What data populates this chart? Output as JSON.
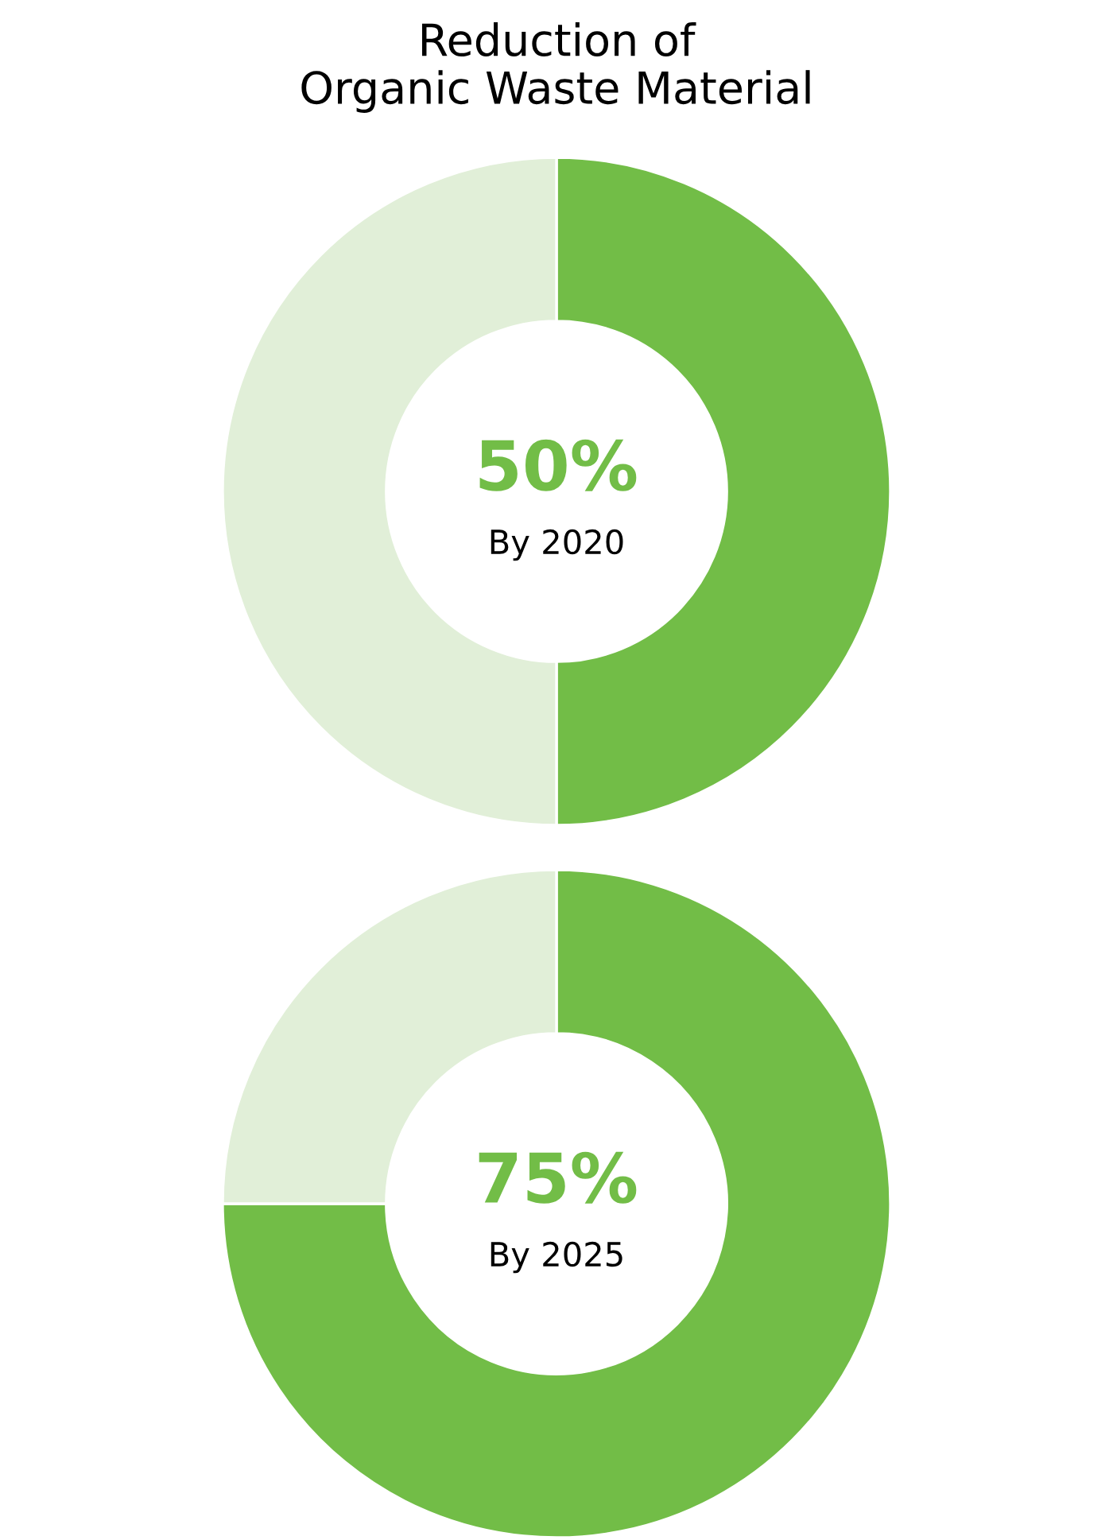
{
  "chart_data": [
    {
      "type": "donut",
      "title": "Reduction of\nOrganic Waste Material",
      "categories": [
        null,
        null
      ],
      "values": [
        50,
        50
      ],
      "colors": [
        "#72bd47",
        "#e1efd8"
      ],
      "value_labels": [
        "50%",
        null
      ],
      "annotations": [
        "By 2020"
      ]
    },
    {
      "type": "donut",
      "categories": [
        null,
        null
      ],
      "values": [
        75,
        25
      ],
      "colors": [
        "#72bd47",
        "#e1efd8"
      ],
      "value_labels": [
        "75%",
        null
      ],
      "annotations": [
        "By 2025"
      ]
    }
  ]
}
